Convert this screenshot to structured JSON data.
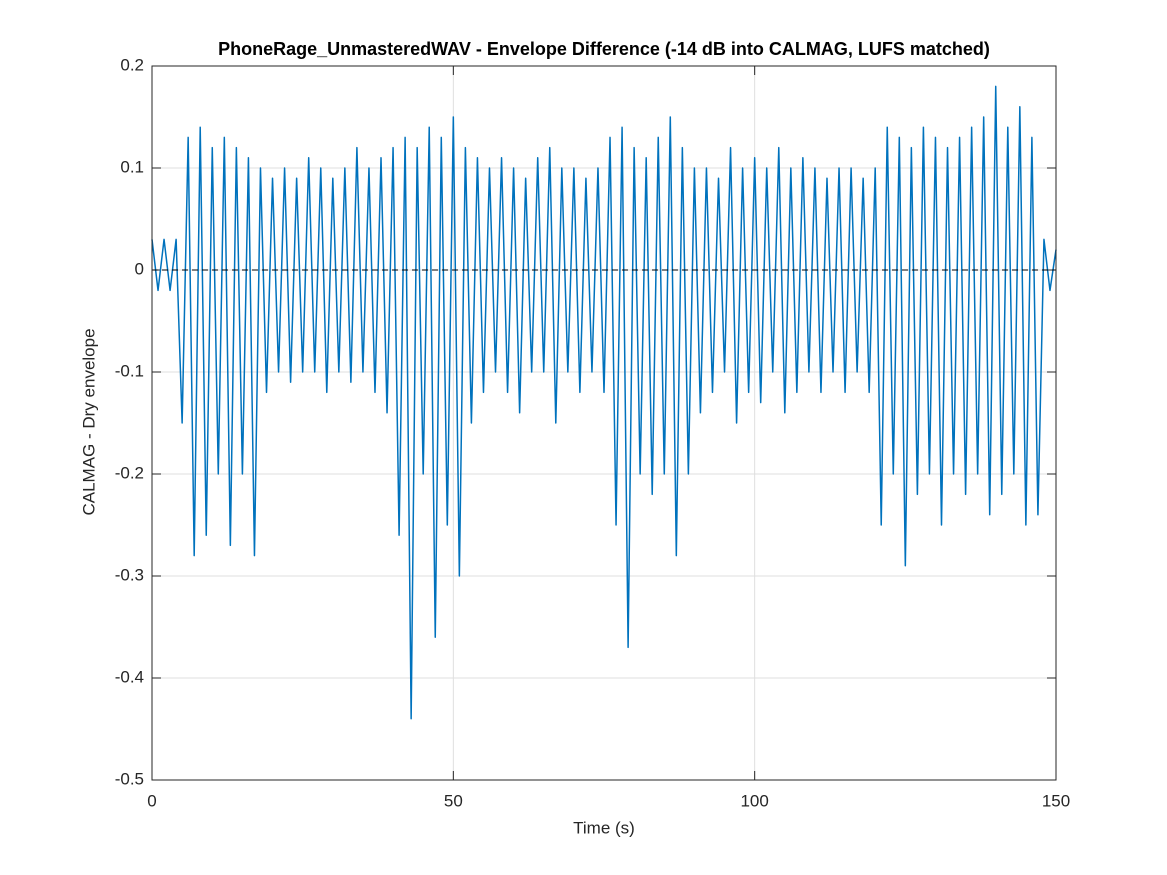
{
  "chart_data": {
    "type": "line",
    "title": "PhoneRage_UnmasteredWAV - Envelope Difference (-14 dB into CALMAG, LUFS matched)",
    "x_label": "Time (s)",
    "y_label": "CALMAG - Dry envelope",
    "x": [
      0,
      1,
      2,
      3,
      4,
      5,
      6,
      7,
      8,
      9,
      10,
      11,
      12,
      13,
      14,
      15,
      16,
      17,
      18,
      19,
      20,
      21,
      22,
      23,
      24,
      25,
      26,
      27,
      28,
      29,
      30,
      31,
      32,
      33,
      34,
      35,
      36,
      37,
      38,
      39,
      40,
      41,
      42,
      43,
      44,
      45,
      46,
      47,
      48,
      49,
      50,
      51,
      52,
      53,
      54,
      55,
      56,
      57,
      58,
      59,
      60,
      61,
      62,
      63,
      64,
      65,
      66,
      67,
      68,
      69,
      70,
      71,
      72,
      73,
      74,
      75,
      76,
      77,
      78,
      79,
      80,
      81,
      82,
      83,
      84,
      85,
      86,
      87,
      88,
      89,
      90,
      91,
      92,
      93,
      94,
      95,
      96,
      97,
      98,
      99,
      100,
      101,
      102,
      103,
      104,
      105,
      106,
      107,
      108,
      109,
      110,
      111,
      112,
      113,
      114,
      115,
      116,
      117,
      118,
      119,
      120,
      121,
      122,
      123,
      124,
      125,
      126,
      127,
      128,
      129,
      130,
      131,
      132,
      133,
      134,
      135,
      136,
      137,
      138,
      139,
      140,
      141,
      142,
      143,
      144,
      145,
      146,
      147,
      148,
      149,
      150
    ],
    "series": [
      {
        "color": "#0072bd",
        "values": [
          0.03,
          -0.02,
          0.03,
          -0.02,
          0.03,
          -0.15,
          0.13,
          -0.28,
          0.14,
          -0.26,
          0.12,
          -0.2,
          0.13,
          -0.27,
          0.12,
          -0.2,
          0.11,
          -0.28,
          0.1,
          -0.12,
          0.09,
          -0.1,
          0.1,
          -0.11,
          0.09,
          -0.1,
          0.11,
          -0.1,
          0.1,
          -0.12,
          0.09,
          -0.1,
          0.1,
          -0.11,
          0.12,
          -0.1,
          0.1,
          -0.12,
          0.11,
          -0.14,
          0.12,
          -0.26,
          0.13,
          -0.44,
          0.12,
          -0.2,
          0.14,
          -0.36,
          0.13,
          -0.25,
          0.15,
          -0.3,
          0.12,
          -0.15,
          0.11,
          -0.12,
          0.1,
          -0.1,
          0.11,
          -0.12,
          0.1,
          -0.14,
          0.09,
          -0.1,
          0.11,
          -0.1,
          0.12,
          -0.15,
          0.1,
          -0.1,
          0.1,
          -0.12,
          0.09,
          -0.1,
          0.1,
          -0.12,
          0.13,
          -0.25,
          0.14,
          -0.37,
          0.12,
          -0.2,
          0.11,
          -0.22,
          0.13,
          -0.2,
          0.15,
          -0.28,
          0.12,
          -0.2,
          0.1,
          -0.14,
          0.1,
          -0.12,
          0.09,
          -0.1,
          0.12,
          -0.15,
          0.1,
          -0.12,
          0.11,
          -0.13,
          0.1,
          -0.1,
          0.12,
          -0.14,
          0.1,
          -0.12,
          0.11,
          -0.1,
          0.1,
          -0.12,
          0.09,
          -0.1,
          0.1,
          -0.12,
          0.1,
          -0.1,
          0.09,
          -0.12,
          0.1,
          -0.25,
          0.14,
          -0.2,
          0.13,
          -0.29,
          0.12,
          -0.22,
          0.14,
          -0.2,
          0.13,
          -0.25,
          0.12,
          -0.2,
          0.13,
          -0.22,
          0.14,
          -0.2,
          0.15,
          -0.24,
          0.18,
          -0.22,
          0.14,
          -0.2,
          0.16,
          -0.25,
          0.13,
          -0.24,
          0.03,
          -0.02,
          0.02
        ]
      }
    ],
    "xlim": [
      0,
      150
    ],
    "xticks": [
      0,
      50,
      100,
      150
    ],
    "ylim": [
      -0.5,
      0.2
    ],
    "yticks": [
      -0.5,
      -0.4,
      -0.3,
      -0.2,
      -0.1,
      0,
      0.1,
      0.2
    ],
    "grid": true,
    "hline": {
      "value": 0,
      "style": "dashed"
    }
  }
}
